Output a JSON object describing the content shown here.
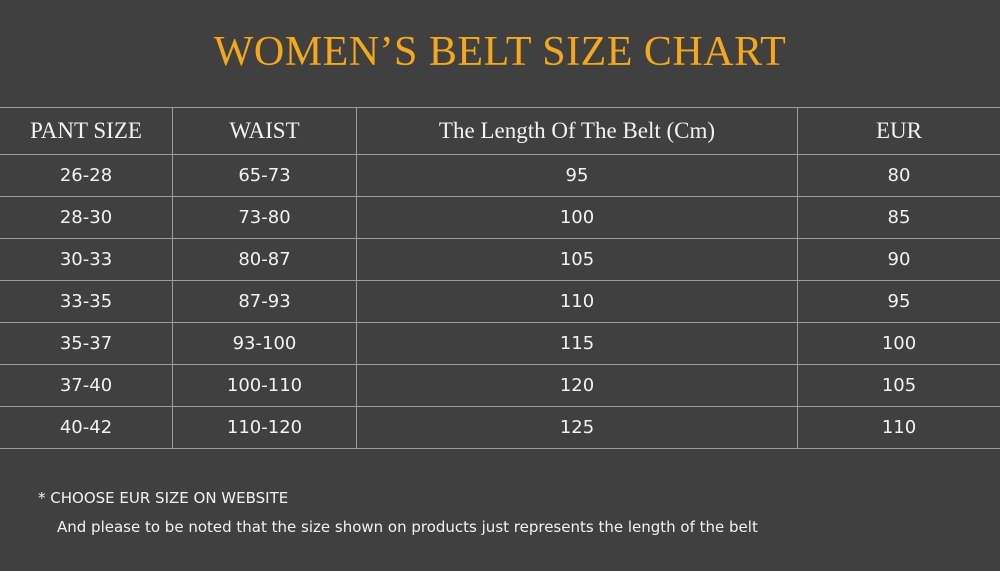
{
  "title": "WOMEN’S BELT SIZE CHART",
  "colors": {
    "background": "#404040",
    "title": "#f5a81c",
    "text": "#f2f2f2",
    "grid": "#9c9c9c"
  },
  "table": {
    "headers": [
      "PANT SIZE",
      "WAIST",
      "The Length Of The Belt (Cm)",
      "EUR"
    ],
    "rows": [
      [
        "26-28",
        "65-73",
        "95",
        "80"
      ],
      [
        "28-30",
        "73-80",
        "100",
        "85"
      ],
      [
        "30-33",
        "80-87",
        "105",
        "90"
      ],
      [
        "33-35",
        "87-93",
        "110",
        "95"
      ],
      [
        "35-37",
        "93-100",
        "115",
        "100"
      ],
      [
        "37-40",
        "100-110",
        "120",
        "105"
      ],
      [
        "40-42",
        "110-120",
        "125",
        "110"
      ]
    ]
  },
  "notes": {
    "line1": "*  CHOOSE EUR SIZE ON WEBSITE",
    "line2": "And please to be noted that the size shown on products just represents the length of the belt"
  }
}
